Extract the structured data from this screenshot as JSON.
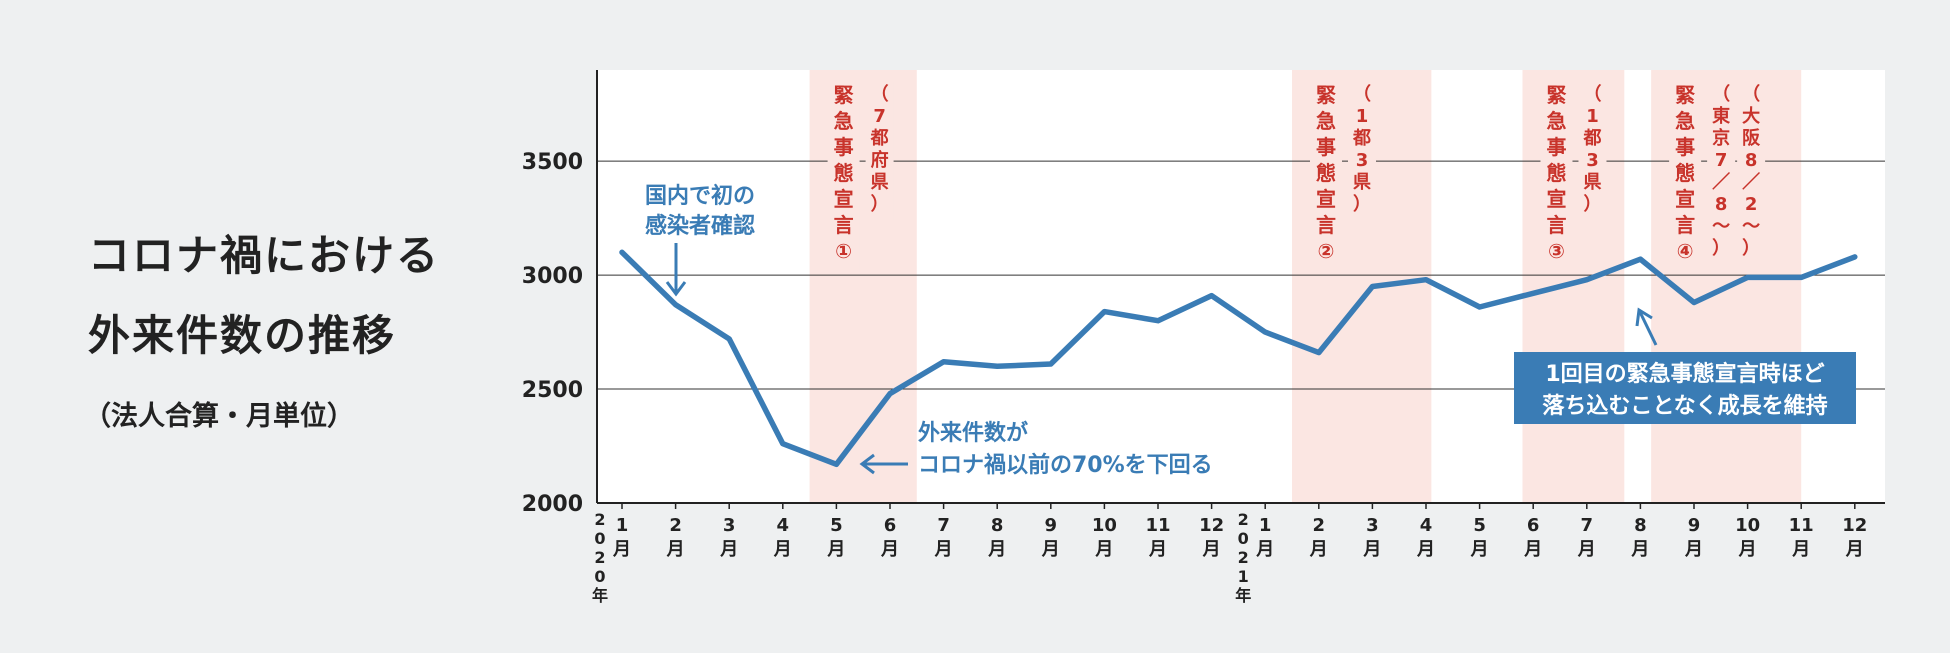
{
  "title_line1": "コロナ禍における",
  "title_line2": "外来件数の推移",
  "subtitle": "（法人合算・月単位）",
  "chart_data": {
    "type": "line",
    "ylim": [
      2000,
      3900
    ],
    "yticks": [
      2000,
      2500,
      3000,
      3500
    ],
    "months": [
      "1",
      "2",
      "3",
      "4",
      "5",
      "6",
      "7",
      "8",
      "9",
      "10",
      "11",
      "12",
      "1",
      "2",
      "3",
      "4",
      "5",
      "6",
      "7",
      "8",
      "9",
      "10",
      "11",
      "12"
    ],
    "month_unit": "月",
    "year_labels": [
      {
        "at": 0,
        "text": "2020年"
      },
      {
        "at": 12,
        "text": "2021年"
      }
    ],
    "values": [
      3100,
      2870,
      2720,
      2260,
      2170,
      2480,
      2620,
      2600,
      2610,
      2840,
      2800,
      2910,
      2750,
      2660,
      2950,
      2980,
      2860,
      2920,
      2980,
      3070,
      2880,
      2990,
      2990,
      3080
    ],
    "line_color": "#3a7cb5",
    "band_color": "#fbe6e2",
    "label_color": "#c8332b",
    "emergency_periods": [
      {
        "start": 3.5,
        "end": 5.5,
        "label": "緊急事態宣言①",
        "note": "（7都府県）"
      },
      {
        "start": 12.5,
        "end": 15.1,
        "label": "緊急事態宣言②",
        "note": "（1都3県）"
      },
      {
        "start": 16.8,
        "end": 18.7,
        "label": "緊急事態宣言③",
        "note": "（1都3県）"
      },
      {
        "start": 19.2,
        "end": 22.0,
        "label": "緊急事態宣言④",
        "notes": [
          "（東京7／8〜）",
          "（大阪8／2〜）"
        ]
      }
    ],
    "annotations": [
      {
        "lines": [
          "国内で初の",
          "感染者確認"
        ],
        "color": "#3a7cb5"
      },
      {
        "lines": [
          "外来件数が",
          "コロナ禍以前の70%を下回る"
        ],
        "color": "#3a7cb5"
      },
      {
        "lines": [
          "1回目の緊急事態宣言時ほど",
          "落ち込むことなく成長を維持"
        ],
        "color": "#3a7cb5"
      }
    ]
  }
}
